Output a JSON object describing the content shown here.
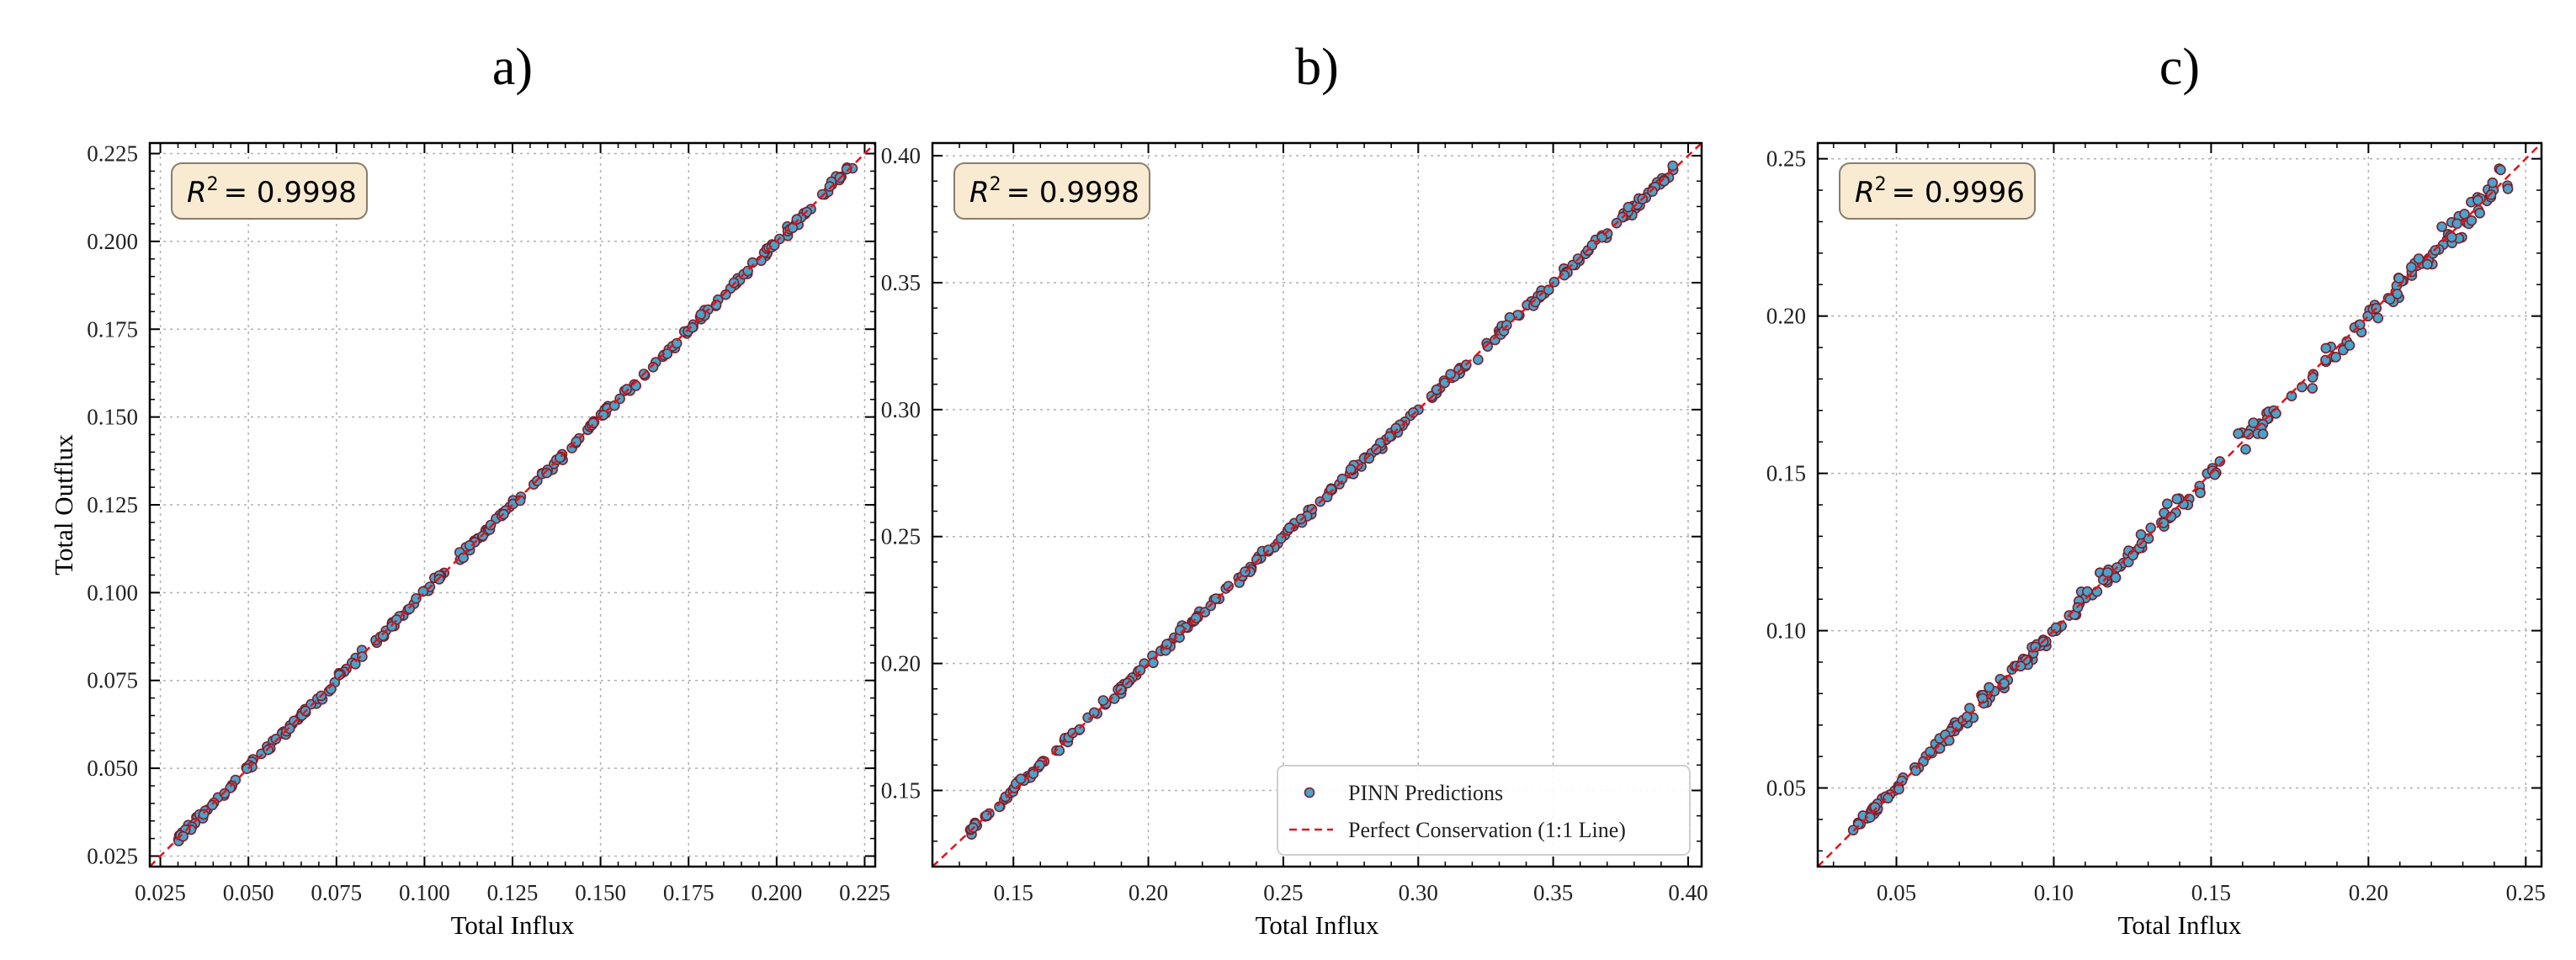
{
  "colors": {
    "point_fill": "#4aa3c8",
    "point_edge": "#7a1f2b",
    "line": "#e0141c",
    "grid": "#b0b0b0",
    "r2_box_fill": "#f8ebd2",
    "r2_box_edge": "#8a7d6b"
  },
  "legend": {
    "position": "lower-right",
    "entries": [
      "PINN Predictions",
      "Perfect Conservation (1:1 Line)"
    ]
  },
  "chart_data": [
    {
      "type": "scatter",
      "panel_label": "a)",
      "xlabel": "Total Influx",
      "ylabel": "Total Outflux",
      "r2_text": "= 0.9998",
      "xlim": [
        0.022,
        0.228
      ],
      "ylim": [
        0.022,
        0.228
      ],
      "xticks": [
        "0.025",
        "0.050",
        "0.075",
        "0.100",
        "0.125",
        "0.150",
        "0.175",
        "0.200",
        "0.225"
      ],
      "yticks": [
        "0.025",
        "0.050",
        "0.075",
        "0.100",
        "0.125",
        "0.150",
        "0.175",
        "0.200",
        "0.225"
      ],
      "grid": true,
      "show_legend": false,
      "series": [
        {
          "kind": "points",
          "range": [
            0.03,
            0.222
          ],
          "count": 260,
          "noise": [
            0.0008,
            0.001
          ]
        },
        {
          "kind": "line",
          "name": "Perfect Conservation (1:1 Line)",
          "x": [
            0.022,
            0.228
          ],
          "y": [
            0.022,
            0.228
          ]
        }
      ]
    },
    {
      "type": "scatter",
      "panel_label": "b)",
      "xlabel": "Total Influx",
      "ylabel": "",
      "r2_text": "= 0.9998",
      "xlim": [
        0.12,
        0.405
      ],
      "ylim": [
        0.12,
        0.405
      ],
      "xticks": [
        "0.15",
        "0.20",
        "0.25",
        "0.30",
        "0.35",
        "0.40"
      ],
      "yticks": [
        "0.15",
        "0.20",
        "0.25",
        "0.30",
        "0.35",
        "0.40"
      ],
      "grid": true,
      "show_legend": true,
      "series": [
        {
          "kind": "points",
          "name": "PINN Predictions",
          "range": [
            0.134,
            0.396
          ],
          "count": 260,
          "noise": [
            0.0012,
            0.0015
          ]
        },
        {
          "kind": "line",
          "name": "Perfect Conservation (1:1 Line)",
          "x": [
            0.12,
            0.405
          ],
          "y": [
            0.12,
            0.405
          ]
        }
      ]
    },
    {
      "type": "scatter",
      "panel_label": "c)",
      "xlabel": "Total Influx",
      "ylabel": "",
      "r2_text": "= 0.9996",
      "xlim": [
        0.025,
        0.255
      ],
      "ylim": [
        0.025,
        0.255
      ],
      "xticks": [
        "0.05",
        "0.10",
        "0.15",
        "0.20",
        "0.25"
      ],
      "yticks": [
        "0.05",
        "0.10",
        "0.15",
        "0.20",
        "0.25"
      ],
      "grid": true,
      "show_legend": false,
      "series": [
        {
          "kind": "points",
          "range": [
            0.036,
            0.245
          ],
          "count": 260,
          "noise": [
            0.001,
            0.004
          ]
        },
        {
          "kind": "line",
          "name": "Perfect Conservation (1:1 Line)",
          "x": [
            0.025,
            0.255
          ],
          "y": [
            0.025,
            0.255
          ]
        }
      ]
    }
  ]
}
